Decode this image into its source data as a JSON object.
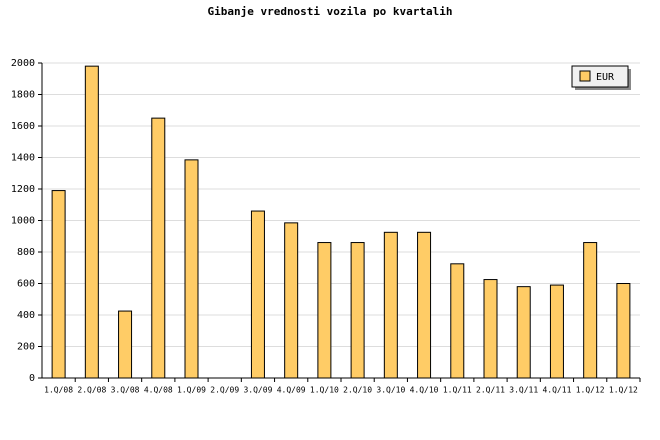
{
  "chart_data": {
    "type": "bar",
    "title": "Gibanje vrednosti vozila po kvartalih",
    "categories": [
      "1.Q/08",
      "2.Q/08",
      "3.Q/08",
      "4.Q/08",
      "1.Q/09",
      "2.Q/09",
      "3.Q/09",
      "4.Q/09",
      "1.Q/10",
      "2.Q/10",
      "3.Q/10",
      "4.Q/10",
      "1.Q/11",
      "2.Q/11",
      "3.Q/11",
      "4.Q/11",
      "1.Q/12",
      "1.Q/12"
    ],
    "series": [
      {
        "name": "EUR",
        "color": "#ffcc66",
        "values": [
          1190,
          1980,
          425,
          1650,
          1385,
          0,
          1060,
          985,
          860,
          860,
          925,
          925,
          725,
          625,
          580,
          590,
          860,
          600
        ]
      }
    ],
    "ylim": [
      0,
      2000
    ],
    "yticks": [
      0,
      200,
      400,
      600,
      800,
      1000,
      1200,
      1400,
      1600,
      1800,
      2000
    ],
    "grid": true,
    "legend": "top-right"
  }
}
